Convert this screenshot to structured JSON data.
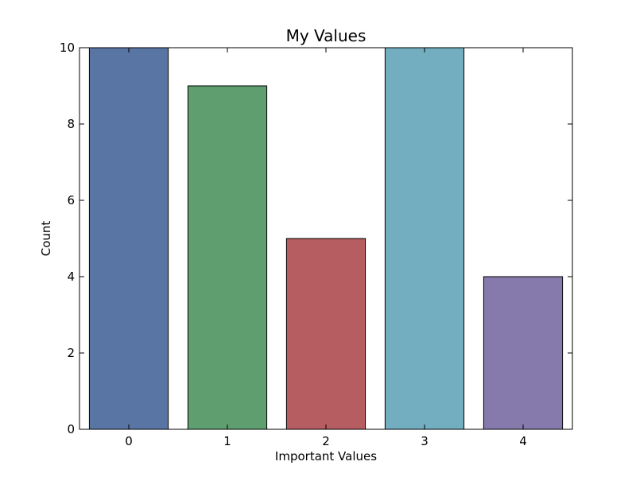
{
  "chart_data": {
    "type": "bar",
    "title": "My Values",
    "xlabel": "Important Values",
    "ylabel": "Count",
    "categories": [
      "0",
      "1",
      "2",
      "3",
      "4"
    ],
    "values": [
      10,
      9,
      5,
      10,
      4
    ],
    "colors": [
      "#5975a4",
      "#5f9e6e",
      "#b55d60",
      "#72aec0",
      "#857aab"
    ],
    "ylim": [
      0,
      10
    ],
    "yticks": [
      0,
      2,
      4,
      6,
      8,
      10
    ],
    "grid": false,
    "legend": "none"
  }
}
